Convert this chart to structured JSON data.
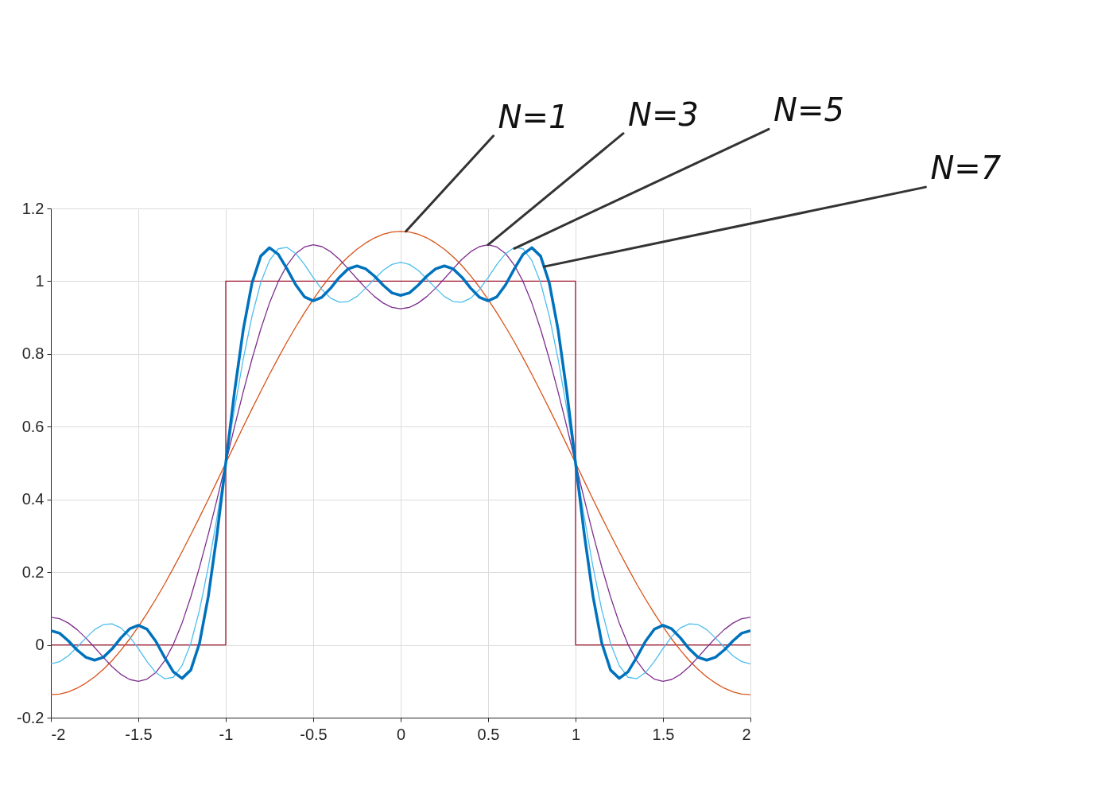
{
  "chart_data": {
    "type": "line",
    "xlim": [
      -2,
      2
    ],
    "ylim": [
      -0.2,
      1.2
    ],
    "xticks": [
      -2,
      -1.5,
      -1,
      -0.5,
      0,
      0.5,
      1,
      1.5,
      2
    ],
    "yticks": [
      -0.2,
      0,
      0.2,
      0.4,
      0.6,
      0.8,
      1,
      1.2
    ],
    "grid": true,
    "x": [
      -2,
      -1.95,
      -1.9,
      -1.85,
      -1.8,
      -1.75,
      -1.7,
      -1.65,
      -1.6,
      -1.55,
      -1.5,
      -1.45,
      -1.4,
      -1.35,
      -1.3,
      -1.25,
      -1.2,
      -1.15,
      -1.1,
      -1.05,
      -1,
      -0.95,
      -0.9,
      -0.85,
      -0.8,
      -0.75,
      -0.7,
      -0.65,
      -0.6,
      -0.55,
      -0.5,
      -0.45,
      -0.4,
      -0.35,
      -0.3,
      -0.25,
      -0.2,
      -0.15,
      -0.1,
      -0.05,
      0,
      0.05,
      0.1,
      0.15,
      0.2,
      0.25,
      0.3,
      0.35,
      0.4,
      0.45,
      0.5,
      0.55,
      0.6,
      0.65,
      0.7,
      0.75,
      0.8,
      0.85,
      0.9,
      0.95,
      1,
      1.05,
      1.1,
      1.15,
      1.2,
      1.25,
      1.3,
      1.35,
      1.4,
      1.45,
      1.5,
      1.55,
      1.6,
      1.65,
      1.7,
      1.75,
      1.8,
      1.85,
      1.9,
      1.95,
      2
    ],
    "series": [
      {
        "color": "#a2142f",
        "x": [
          -2,
          -1,
          -1,
          1,
          1,
          2
        ],
        "values": [
          0,
          0,
          1,
          1,
          0,
          0
        ]
      },
      {
        "color": "#d95319",
        "values": [
          -0.137,
          -0.135,
          -0.129,
          -0.119,
          -0.105,
          -0.088,
          -0.067,
          -0.043,
          -0.015,
          0.016,
          0.05,
          0.087,
          0.126,
          0.167,
          0.211,
          0.256,
          0.303,
          0.351,
          0.4,
          0.45,
          0.5,
          0.55,
          0.6,
          0.649,
          0.697,
          0.744,
          0.789,
          0.833,
          0.874,
          0.913,
          0.95,
          0.984,
          1.015,
          1.043,
          1.067,
          1.088,
          1.105,
          1.119,
          1.129,
          1.135,
          1.137,
          1.135,
          1.129,
          1.119,
          1.105,
          1.088,
          1.067,
          1.043,
          1.015,
          0.984,
          0.95,
          0.913,
          0.874,
          0.833,
          0.789,
          0.744,
          0.697,
          0.649,
          0.6,
          0.55,
          0.5,
          0.45,
          0.4,
          0.351,
          0.303,
          0.256,
          0.211,
          0.167,
          0.126,
          0.087,
          0.05,
          0.016,
          -0.015,
          -0.043,
          -0.067,
          -0.088,
          -0.105,
          -0.119,
          -0.129,
          -0.135,
          -0.137
        ]
      },
      {
        "color": "#7e2f8e",
        "values": [
          0.076,
          0.072,
          0.06,
          0.042,
          0.019,
          -0.007,
          -0.034,
          -0.06,
          -0.081,
          -0.095,
          -0.1,
          -0.094,
          -0.076,
          -0.044,
          0.001,
          0.06,
          0.132,
          0.214,
          0.304,
          0.4,
          0.5,
          0.6,
          0.696,
          0.786,
          0.868,
          0.94,
          0.999,
          1.044,
          1.076,
          1.094,
          1.1,
          1.095,
          1.081,
          1.06,
          1.034,
          1.007,
          0.981,
          0.958,
          0.94,
          0.928,
          0.924,
          0.928,
          0.94,
          0.958,
          0.981,
          1.007,
          1.034,
          1.06,
          1.081,
          1.095,
          1.1,
          1.094,
          1.076,
          1.044,
          0.999,
          0.94,
          0.868,
          0.786,
          0.696,
          0.6,
          0.5,
          0.4,
          0.304,
          0.214,
          0.132,
          0.06,
          0.001,
          -0.044,
          -0.076,
          -0.094,
          -0.1,
          -0.095,
          -0.081,
          -0.06,
          -0.034,
          -0.007,
          0.019,
          0.042,
          0.06,
          0.072,
          0.076
        ]
      },
      {
        "color": "#4dbeee",
        "values": [
          -0.052,
          -0.046,
          -0.03,
          -0.006,
          0.019,
          0.042,
          0.056,
          0.058,
          0.047,
          0.023,
          -0.01,
          -0.046,
          -0.076,
          -0.093,
          -0.089,
          -0.057,
          0.004,
          0.096,
          0.214,
          0.351,
          0.5,
          0.649,
          0.786,
          0.904,
          0.996,
          1.057,
          1.089,
          1.093,
          1.076,
          1.046,
          1.01,
          0.977,
          0.953,
          0.942,
          0.944,
          0.958,
          0.981,
          1.006,
          1.03,
          1.046,
          1.052,
          1.046,
          1.03,
          1.006,
          0.981,
          0.958,
          0.944,
          0.942,
          0.953,
          0.977,
          1.01,
          1.046,
          1.076,
          1.093,
          1.089,
          1.057,
          0.996,
          0.904,
          0.786,
          0.649,
          0.5,
          0.351,
          0.214,
          0.096,
          0.004,
          -0.057,
          -0.089,
          -0.093,
          -0.076,
          -0.046,
          -0.01,
          0.023,
          0.047,
          0.058,
          0.056,
          0.042,
          0.019,
          -0.006,
          -0.03,
          -0.046,
          -0.052
        ]
      },
      {
        "color": "#0072bd",
        "values": [
          0.039,
          0.032,
          0.011,
          -0.014,
          -0.034,
          -0.042,
          -0.034,
          -0.011,
          0.019,
          0.044,
          0.054,
          0.043,
          0.01,
          -0.034,
          -0.074,
          -0.092,
          -0.069,
          0.005,
          0.133,
          0.304,
          0.5,
          0.696,
          0.867,
          0.995,
          1.069,
          1.092,
          1.074,
          1.034,
          0.99,
          0.957,
          0.946,
          0.956,
          0.981,
          1.011,
          1.034,
          1.042,
          1.034,
          1.014,
          0.989,
          0.968,
          0.961,
          0.968,
          0.989,
          1.014,
          1.034,
          1.042,
          1.034,
          1.011,
          0.981,
          0.956,
          0.946,
          0.957,
          0.99,
          1.034,
          1.074,
          1.092,
          1.069,
          0.995,
          0.867,
          0.696,
          0.5,
          0.304,
          0.133,
          0.005,
          -0.069,
          -0.092,
          -0.074,
          -0.034,
          0.01,
          0.043,
          0.054,
          0.044,
          0.019,
          -0.011,
          -0.034,
          -0.042,
          -0.034,
          -0.014,
          0.011,
          0.032,
          0.039
        ]
      }
    ],
    "annotations": [
      {
        "text": "N=1",
        "x": 0.03,
        "y": 1.137
      },
      {
        "text": "N=3",
        "x": 0.5,
        "y": 1.1
      },
      {
        "text": "N=5",
        "x": 0.65,
        "y": 1.09
      },
      {
        "text": "N=7",
        "x": 0.82,
        "y": 1.04
      }
    ]
  }
}
